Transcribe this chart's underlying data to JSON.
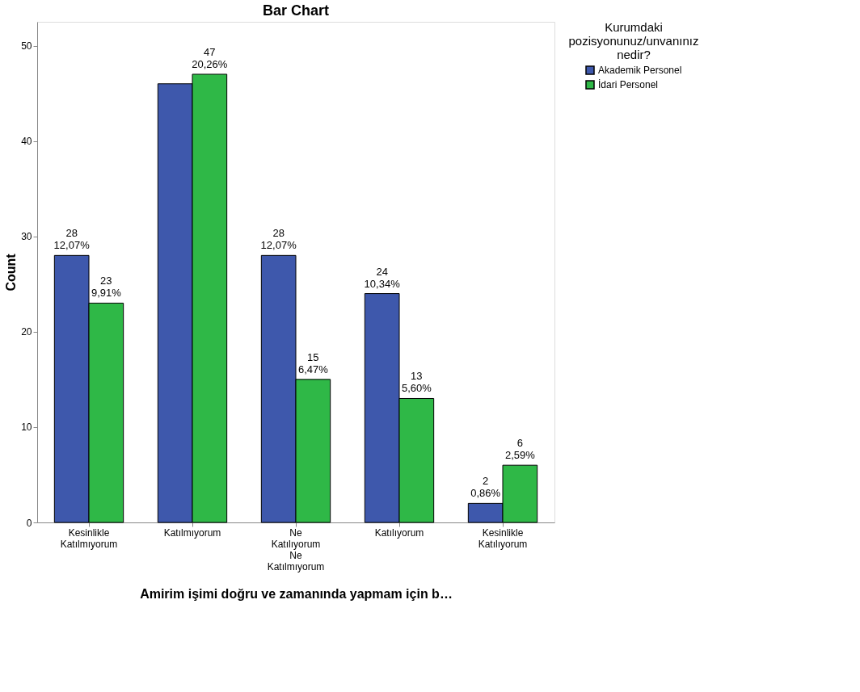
{
  "chart_data": {
    "type": "bar",
    "title": "Bar Chart",
    "xlabel": "Amirim işimi doğru ve zamanında yapmam için b…",
    "ylabel": "Count",
    "legend_title": "Kurumdaki\npozisyonunuz/unvanınız\nnedir?",
    "categories": [
      "Kesinlikle Katılmıyorum",
      "Katılmıyorum",
      "Ne Katılıyorum Ne Katılmıyorum",
      "Katılıyorum",
      "Kesinlikle Katılıyorum"
    ],
    "series": [
      {
        "name": "Akademik Personel",
        "color": "#3e58ac",
        "values": [
          28,
          46,
          28,
          24,
          2
        ],
        "value_labels": [
          "28\n12,07%",
          null,
          "28\n12,07%",
          "24\n10,34%",
          "2\n0,86%"
        ]
      },
      {
        "name": "İdari Personel",
        "color": "#2fb847",
        "values": [
          23,
          47,
          15,
          13,
          6
        ],
        "value_labels": [
          "23\n9,91%",
          "47\n20,26%",
          "15\n6,47%",
          "13\n5,60%",
          "6\n2,59%"
        ]
      }
    ],
    "ylim": [
      0,
      52.5
    ],
    "yticks": [
      0,
      10,
      20,
      30,
      40,
      50
    ],
    "grid": false,
    "legend": "top right"
  }
}
